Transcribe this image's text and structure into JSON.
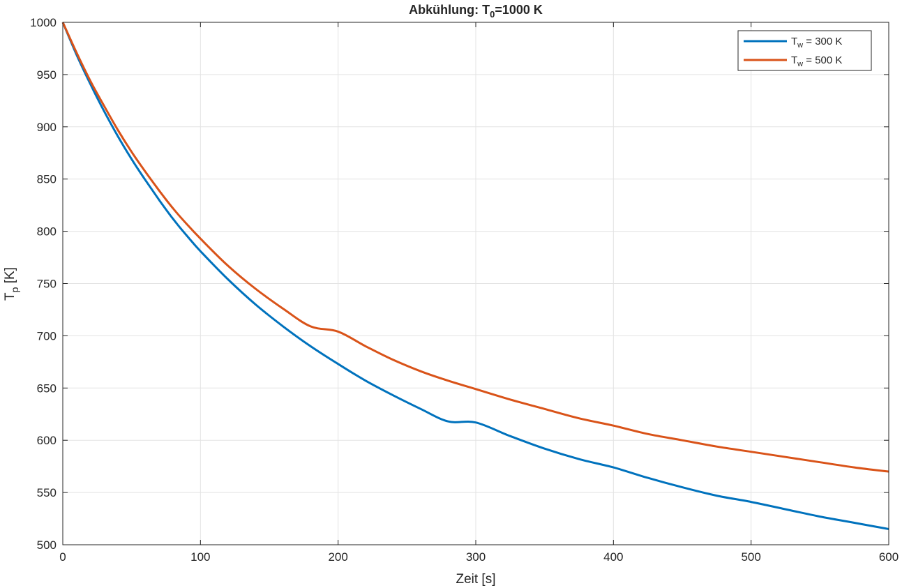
{
  "chart_data": {
    "type": "line",
    "title": {
      "main": "Abkühlung:  T",
      "sub": "0",
      "rest": "=1000  K"
    },
    "xlabel": "Zeit [s]",
    "ylabel": {
      "main": "T",
      "sub": "p",
      "rest": " [K]"
    },
    "xlim": [
      0,
      600
    ],
    "ylim": [
      500,
      1000
    ],
    "xticks": [
      0,
      100,
      200,
      300,
      400,
      500,
      600
    ],
    "yticks": [
      500,
      550,
      600,
      650,
      700,
      750,
      800,
      850,
      900,
      950,
      1000
    ],
    "grid": true,
    "legend_position": "top-right",
    "series": [
      {
        "legend": {
          "main": "T",
          "sub": "w",
          "rest": "  =  300  K"
        },
        "color": "#0072BD",
        "x": [
          0,
          10,
          20,
          30,
          40,
          50,
          60,
          70,
          80,
          90,
          100,
          120,
          140,
          160,
          180,
          200,
          220,
          240,
          260,
          280,
          300,
          325,
          350,
          375,
          400,
          425,
          450,
          475,
          500,
          525,
          550,
          575,
          600
        ],
        "y": [
          1000,
          969,
          941,
          915,
          891,
          869,
          849,
          830,
          812,
          796,
          781,
          754,
          730,
          709,
          690,
          673,
          657,
          643,
          630,
          618,
          617,
          604,
          592,
          582,
          574,
          564,
          555,
          547,
          541,
          534,
          527,
          521,
          515
        ]
      },
      {
        "legend": {
          "main": "T",
          "sub": "w",
          "rest": "  =  500  K"
        },
        "color": "#D95319",
        "x": [
          0,
          10,
          20,
          30,
          40,
          50,
          60,
          70,
          80,
          90,
          100,
          120,
          140,
          160,
          180,
          200,
          220,
          240,
          260,
          280,
          300,
          325,
          350,
          375,
          400,
          425,
          450,
          475,
          500,
          525,
          550,
          575,
          600
        ],
        "y": [
          1000,
          971,
          944,
          920,
          897,
          876,
          857,
          839,
          822,
          807,
          793,
          767,
          745,
          726,
          709,
          704,
          690,
          677,
          666,
          657,
          649,
          639,
          630,
          621,
          614,
          606,
          600,
          594,
          589,
          584,
          579,
          574,
          570
        ]
      }
    ]
  }
}
